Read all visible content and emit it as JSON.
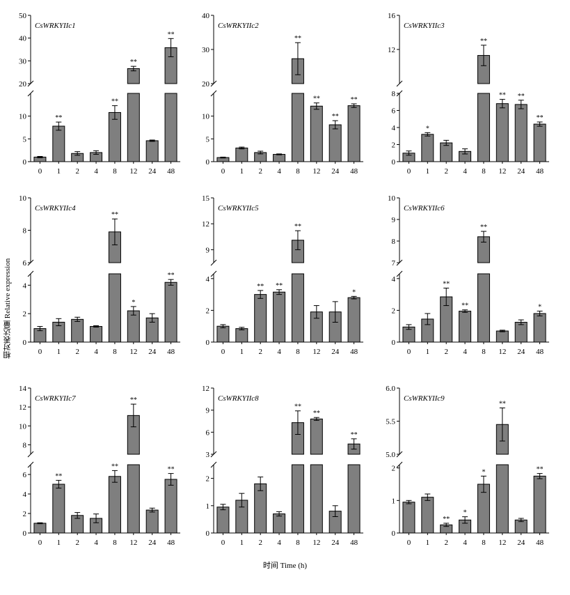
{
  "ylabel": "相对表达量 Relative expression",
  "xlabel": "时间 Time (h)",
  "chart_data": [
    {
      "type": "bar",
      "title": "CsWRKYIIc1",
      "categories": [
        "0",
        "1",
        "2",
        "4",
        "8",
        "12",
        "24",
        "48"
      ],
      "values": [
        1.0,
        7.8,
        1.8,
        2.0,
        10.8,
        26.6,
        4.6,
        35.8
      ],
      "errors": [
        0.15,
        0.9,
        0.4,
        0.4,
        1.5,
        1.0,
        0.15,
        4.0
      ],
      "significance": [
        "",
        "**",
        "",
        "",
        "**",
        "**",
        "",
        "**"
      ],
      "lower_range": [
        0,
        15
      ],
      "lower_ticks": [
        0,
        5,
        10
      ],
      "upper_range": [
        20,
        50
      ],
      "upper_ticks": [
        20,
        30,
        40,
        50
      ]
    },
    {
      "type": "bar",
      "title": "CsWRKYIIc2",
      "categories": [
        "0",
        "1",
        "2",
        "4",
        "8",
        "12",
        "24",
        "48"
      ],
      "values": [
        0.9,
        3.0,
        2.0,
        1.6,
        27.3,
        12.2,
        8.1,
        12.3
      ],
      "errors": [
        0.1,
        0.2,
        0.3,
        0.1,
        4.7,
        0.7,
        0.9,
        0.4
      ],
      "significance": [
        "",
        "",
        "",
        "",
        "**",
        "**",
        "**",
        "**"
      ],
      "lower_range": [
        0,
        15
      ],
      "lower_ticks": [
        0,
        5,
        10
      ],
      "upper_range": [
        20,
        40
      ],
      "upper_ticks": [
        20,
        30,
        40
      ]
    },
    {
      "type": "bar",
      "title": "CsWRKYIIc3",
      "categories": [
        "0",
        "1",
        "2",
        "4",
        "8",
        "12",
        "24",
        "48"
      ],
      "values": [
        1.0,
        3.2,
        2.2,
        1.2,
        11.3,
        6.8,
        6.7,
        4.4
      ],
      "errors": [
        0.25,
        0.2,
        0.3,
        0.3,
        1.2,
        0.5,
        0.5,
        0.25
      ],
      "significance": [
        "",
        "*",
        "",
        "",
        "**",
        "**",
        "**",
        "**"
      ],
      "lower_range": [
        0,
        8
      ],
      "lower_ticks": [
        0,
        2,
        4,
        6,
        8
      ],
      "upper_range": [
        8,
        16
      ],
      "upper_ticks": [
        12,
        16
      ]
    },
    {
      "type": "bar",
      "title": "CsWRKYIIc4",
      "categories": [
        "0",
        "1",
        "2",
        "4",
        "8",
        "12",
        "24",
        "48"
      ],
      "values": [
        0.95,
        1.4,
        1.6,
        1.1,
        7.9,
        2.2,
        1.7,
        4.2
      ],
      "errors": [
        0.15,
        0.25,
        0.15,
        0.05,
        0.8,
        0.3,
        0.3,
        0.2
      ],
      "significance": [
        "",
        "",
        "",
        "",
        "**",
        "*",
        "",
        "**"
      ],
      "lower_range": [
        0,
        4.8
      ],
      "lower_ticks": [
        0,
        2,
        4
      ],
      "upper_range": [
        6,
        10
      ],
      "upper_ticks": [
        6,
        8,
        10
      ]
    },
    {
      "type": "bar",
      "title": "CsWRKYIIc5",
      "categories": [
        "0",
        "1",
        "2",
        "4",
        "8",
        "12",
        "24",
        "48"
      ],
      "values": [
        1.0,
        0.85,
        3.0,
        3.15,
        10.1,
        1.9,
        1.9,
        2.8
      ],
      "errors": [
        0.1,
        0.08,
        0.25,
        0.15,
        1.1,
        0.4,
        0.65,
        0.08
      ],
      "significance": [
        "",
        "",
        "**",
        "**",
        "**",
        "",
        "",
        "*"
      ],
      "lower_range": [
        0,
        4.3
      ],
      "lower_ticks": [
        0,
        2,
        4
      ],
      "upper_range": [
        7.5,
        15
      ],
      "upper_ticks": [
        9,
        12,
        15
      ]
    },
    {
      "type": "bar",
      "title": "CsWRKYIIc6",
      "categories": [
        "0",
        "1",
        "2",
        "4",
        "8",
        "12",
        "24",
        "48"
      ],
      "values": [
        0.95,
        1.45,
        2.85,
        1.95,
        8.2,
        0.7,
        1.25,
        1.8
      ],
      "errors": [
        0.15,
        0.35,
        0.55,
        0.08,
        0.25,
        0.05,
        0.15,
        0.15
      ],
      "significance": [
        "",
        "",
        "**",
        "**",
        "**",
        "",
        "",
        "*"
      ],
      "lower_range": [
        0,
        4.3
      ],
      "lower_ticks": [
        0,
        2,
        4
      ],
      "upper_range": [
        7,
        10
      ],
      "upper_ticks": [
        7,
        8,
        9,
        10
      ]
    },
    {
      "type": "bar",
      "title": "CsWRKYIIc7",
      "categories": [
        "0",
        "1",
        "2",
        "4",
        "8",
        "12",
        "24",
        "48"
      ],
      "values": [
        1.0,
        5.0,
        1.8,
        1.5,
        5.8,
        11.1,
        2.35,
        5.5
      ],
      "errors": [
        0.05,
        0.4,
        0.3,
        0.45,
        0.6,
        1.2,
        0.2,
        0.6
      ],
      "significance": [
        "",
        "**",
        "",
        "",
        "**",
        "**",
        "",
        "**"
      ],
      "lower_range": [
        0,
        7
      ],
      "lower_ticks": [
        0,
        2,
        4,
        6
      ],
      "upper_range": [
        7,
        14
      ],
      "upper_ticks": [
        8,
        10,
        12,
        14
      ]
    },
    {
      "type": "bar",
      "title": "CsWRKYIIc8",
      "categories": [
        "0",
        "1",
        "2",
        "4",
        "8",
        "12",
        "24",
        "48"
      ],
      "values": [
        0.95,
        1.2,
        1.8,
        0.7,
        7.3,
        7.8,
        0.8,
        4.4
      ],
      "errors": [
        0.1,
        0.25,
        0.25,
        0.08,
        1.6,
        0.2,
        0.2,
        0.7
      ],
      "significance": [
        "",
        "",
        "",
        "",
        "**",
        "**",
        "",
        "**"
      ],
      "lower_range": [
        0,
        2.5
      ],
      "lower_ticks": [
        0,
        1,
        2
      ],
      "upper_range": [
        3,
        12
      ],
      "upper_ticks": [
        3,
        6,
        9,
        12
      ]
    },
    {
      "type": "bar",
      "title": "CsWRKYIIc9",
      "categories": [
        "0",
        "1",
        "2",
        "4",
        "8",
        "12",
        "24",
        "48"
      ],
      "values": [
        0.95,
        1.1,
        0.25,
        0.4,
        1.5,
        5.45,
        0.4,
        1.75
      ],
      "errors": [
        0.05,
        0.1,
        0.05,
        0.1,
        0.25,
        0.25,
        0.05,
        0.08
      ],
      "significance": [
        "",
        "",
        "**",
        "*",
        "*",
        "**",
        "",
        "**"
      ],
      "lower_range": [
        0,
        2.1
      ],
      "lower_ticks": [
        0,
        1,
        2
      ],
      "upper_range": [
        5,
        6
      ],
      "upper_ticks": [
        "5.0",
        "5.5",
        "6.0"
      ]
    }
  ]
}
